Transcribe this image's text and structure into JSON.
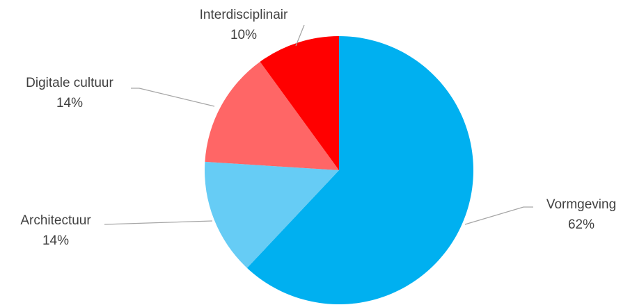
{
  "chart_data": {
    "type": "pie",
    "categories": [
      "Vormgeving",
      "Architectuur",
      "Digitale cultuur",
      "Interdisciplinair"
    ],
    "values": [
      62,
      14,
      14,
      10
    ],
    "value_labels": [
      "62%",
      "14%",
      "14%",
      "10%"
    ],
    "colors": [
      "#00b0f0",
      "#66ccf5",
      "#ff6666",
      "#ff0000"
    ]
  }
}
